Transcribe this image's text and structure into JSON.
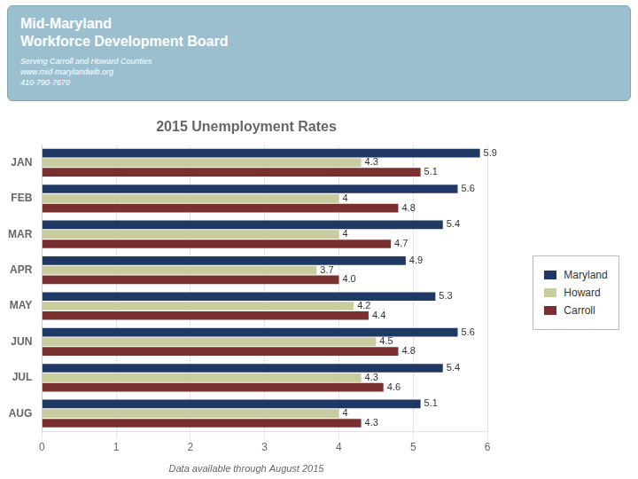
{
  "chart_data": {
    "type": "bar",
    "orientation": "horizontal",
    "title": "2015 Unemployment Rates",
    "subtitle": "Data available through August 2015",
    "annotations": [
      "Mid-Maryland",
      "Workforce Development Board",
      "Serving Carroll and Howard Counties",
      "www.mid-marylandwib.org",
      "410-790-7670"
    ],
    "categories": [
      "JAN",
      "FEB",
      "MAR",
      "APR",
      "MAY",
      "JUN",
      "JUL",
      "AUG"
    ],
    "series": [
      {
        "name": "Maryland",
        "color": "#1F3864",
        "values": [
          5.9,
          5.6,
          5.4,
          4.9,
          5.3,
          5.6,
          5.4,
          5.1
        ]
      },
      {
        "name": "Howard",
        "color": "#C8CC9E",
        "values": [
          4.3,
          4,
          4,
          3.7,
          4.2,
          4.5,
          4.3,
          4
        ]
      },
      {
        "name": "Carroll",
        "color": "#7B3030",
        "values": [
          5.1,
          4.8,
          4.7,
          4.0,
          4.4,
          4.8,
          4.6,
          4.3
        ],
        "value_labels": [
          "5.1",
          "4.8",
          "4.7",
          "4.0",
          "4.4",
          "4.8",
          "4.6",
          "4.3"
        ]
      }
    ],
    "xlim": [
      0,
      6
    ],
    "xticks": [
      0,
      1,
      2,
      3,
      4,
      5,
      6
    ],
    "grid": true,
    "legend": "right",
    "data_labels": true
  }
}
